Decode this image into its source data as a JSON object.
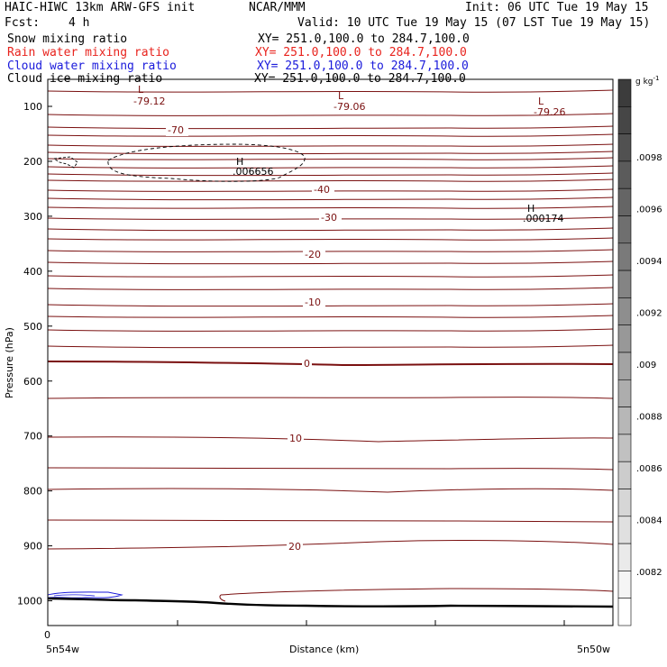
{
  "header": {
    "title_left": "HAIC-HIWC 13km ARW-GFS init",
    "org": "NCAR/MMM",
    "init": "Init: 06 UTC Tue 19 May 15",
    "fcst_label": "Fcst:",
    "fcst_value": "4 h",
    "valid": "Valid: 10 UTC Tue 19 May 15 (07 LST Tue 19 May 15)"
  },
  "fields": [
    {
      "name": "Snow mixing ratio",
      "xy": "XY= 251.0,100.0 to 284.7,100.0",
      "color": "#000000"
    },
    {
      "name": "Rain water mixing ratio",
      "xy": "XY= 251.0,100.0 to 284.7,100.0",
      "color": "#e8231d"
    },
    {
      "name": "Cloud water mixing ratio",
      "xy": "XY= 251.0,100.0 to 284.7,100.0",
      "color": "#1a1adb"
    },
    {
      "name": "Cloud ice mixing ratio",
      "xy": "XY= 251.0,100.0 to 284.7,100.0",
      "color": "#000000"
    }
  ],
  "chart_data": {
    "type": "cross-section",
    "xlabel": "Distance (km)",
    "ylabel": "Pressure (hPa)",
    "x_left_label": "5n54w",
    "x_right_label": "5n50w",
    "x_zero_label": "0",
    "y_ticks": [
      100,
      200,
      300,
      400,
      500,
      600,
      700,
      800,
      900,
      1000
    ],
    "ylim": [
      50,
      1050
    ],
    "colorbar": {
      "unit": "g kg",
      "unit_exp": "-1",
      "labels": [
        ".0098",
        ".0096",
        ".0094",
        ".0092",
        ".009",
        ".0088",
        ".0086",
        ".0084",
        ".0082"
      ]
    },
    "temperature_contour_labels": [
      "-70",
      "-40",
      "-30",
      "-20",
      "-10",
      "0",
      "10",
      "20"
    ],
    "extrema": [
      {
        "type": "L",
        "value": "-79.12"
      },
      {
        "type": "L",
        "value": "-79.06"
      },
      {
        "type": "L",
        "value": "-79.26"
      },
      {
        "type": "H",
        "value": ".006656"
      },
      {
        "type": "H",
        "value": ".000174"
      }
    ],
    "colors": {
      "temperature": "#7a1010",
      "terrain": "#000000",
      "cloud_water": "#1a1adb"
    }
  }
}
